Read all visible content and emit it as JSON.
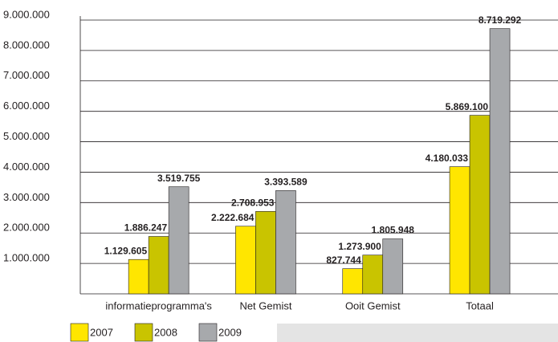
{
  "chart_data": {
    "type": "bar",
    "categories": [
      "informatieprogramma's",
      "Net Gemist",
      "Ooit Gemist",
      "Totaal"
    ],
    "series": [
      {
        "name": "2007",
        "color": "#ffe600",
        "values": [
          1129605,
          2222684,
          827744,
          4180033
        ],
        "value_labels": [
          "1.129.605",
          "2.222.684",
          "827.744",
          "4.180.033"
        ]
      },
      {
        "name": "2008",
        "color": "#c9c400",
        "values": [
          1886247,
          2708953,
          1273900,
          5869100
        ],
        "value_labels": [
          "1.886.247",
          "2.708.953",
          "1.273.900",
          "5.869.100"
        ]
      },
      {
        "name": "2009",
        "color": "#a7a9ac",
        "values": [
          3519755,
          3393589,
          1805948,
          8719292
        ],
        "value_labels": [
          "3.519.755",
          "3.393.589",
          "1.805.948",
          "8.719.292"
        ]
      }
    ],
    "ylim": [
      0,
      9000000
    ],
    "yticks": [
      {
        "value": 1000000,
        "label": "1.000.000"
      },
      {
        "value": 2000000,
        "label": "2.000.000"
      },
      {
        "value": 3000000,
        "label": "3.000.000"
      },
      {
        "value": 4000000,
        "label": "4.000.000"
      },
      {
        "value": 5000000,
        "label": "5.000.000"
      },
      {
        "value": 6000000,
        "label": "6.000.000"
      },
      {
        "value": 7000000,
        "label": "7.000.000"
      },
      {
        "value": 8000000,
        "label": "8.000.000"
      },
      {
        "value": 9000000,
        "label": "9.000.000"
      }
    ],
    "grid": true
  }
}
